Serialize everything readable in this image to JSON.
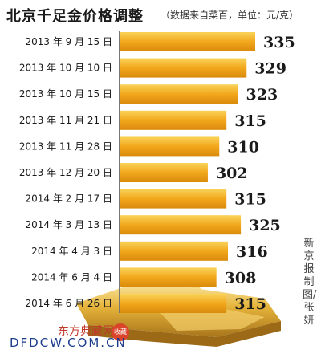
{
  "chart_data": {
    "type": "bar",
    "orientation": "horizontal",
    "title": "北京千足金价格调整",
    "subtitle": "（数据来自菜百，单位：元/克）",
    "categories": [
      "2013 年 9 月 15 日",
      "2013 年 10 月 10 日",
      "2013 年 10 月 15 日",
      "2013 年 11 月 21 日",
      "2013 年 11 月 28 日",
      "2013 年 12 月 20 日",
      "2014 年 2 月 17 日",
      "2014 年 3 月 13 日",
      "2014 年 4 月 3 日",
      "2014 年 6 月 4 日",
      "2014 年 6 月 26 日"
    ],
    "values": [
      335,
      329,
      323,
      315,
      310,
      302,
      315,
      325,
      316,
      308,
      315
    ],
    "value_labels": [
      "335",
      "329",
      "323",
      "315",
      "310",
      "302",
      "315",
      "325",
      "316",
      "308",
      "315"
    ],
    "xlim": [
      0,
      335
    ],
    "bar_color": "#f2a71c",
    "label_color": "#1a1a1a",
    "grid": false,
    "legend": "none"
  },
  "credit": "新京报制图/张妍",
  "watermark": {
    "site": "东方典藏网",
    "seal": "收藏",
    "url": "DFDCW.COM.CN"
  }
}
